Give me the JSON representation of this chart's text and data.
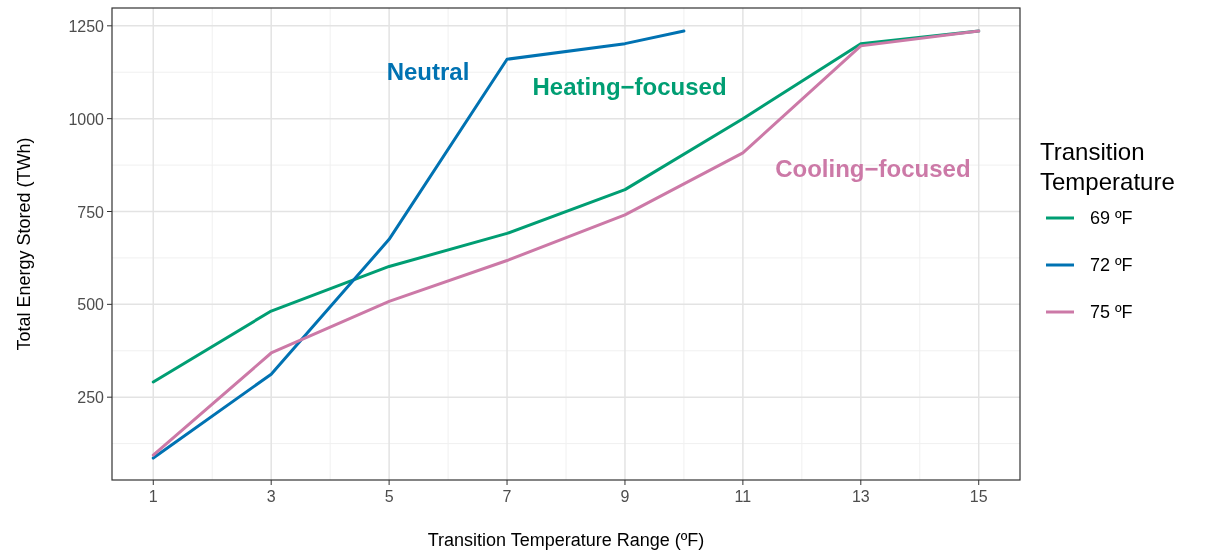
{
  "chart_data": {
    "type": "line",
    "xlabel": "Transition Temperature Range (ºF)",
    "ylabel": "Total Energy Stored (TWh)",
    "legend_title": "Transition Temperature",
    "legend": "right",
    "grid": true,
    "line_style": "solid",
    "xlim": [
      0.3,
      15.7
    ],
    "xticks": [
      1,
      3,
      5,
      7,
      9,
      11,
      13,
      15
    ],
    "ylim": [
      27,
      1298
    ],
    "yticks": [
      250,
      500,
      750,
      1000,
      1250
    ],
    "series": [
      {
        "name": "69 ºF",
        "color": "#009e73",
        "x": [
          1,
          3,
          5,
          7,
          9,
          11,
          13,
          15
        ],
        "values": [
          291,
          482,
          602,
          691,
          809,
          1000,
          1202,
          1236
        ]
      },
      {
        "name": "72 ºF",
        "color": "#0072b2",
        "x": [
          1,
          3,
          5,
          7,
          9,
          10
        ],
        "values": [
          86,
          312,
          675,
          1160,
          1202,
          1236
        ]
      },
      {
        "name": "75 ºF",
        "color": "#cc79a7",
        "x": [
          1,
          3,
          5,
          7,
          9,
          11,
          13,
          15
        ],
        "values": [
          94,
          369,
          508,
          618,
          741,
          908,
          1196,
          1236
        ]
      }
    ],
    "annotations": [
      "Heating−focused",
      "Neutral",
      "Cooling−focused"
    ]
  }
}
